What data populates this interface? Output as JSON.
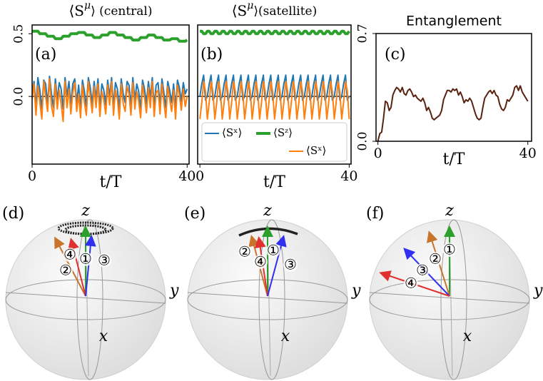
{
  "chart_data": [
    {
      "type": "line",
      "title": [
        "⟨S",
        "μ",
        "⟩ (central)"
      ],
      "panel_label": "(a)",
      "xlabel": "t/T",
      "xlim": [
        0,
        40.5
      ],
      "xticks": [
        0,
        40
      ],
      "ylim": [
        -0.54,
        0.57
      ],
      "yticks": [
        0.5,
        {
          "value": 0,
          "label": "0.0"
        }
      ],
      "hline": 0,
      "x": [
        0,
        0.5,
        1,
        1.5,
        2,
        2.5,
        3,
        3.5,
        4,
        4.5,
        5,
        5.5,
        6,
        6.5,
        7,
        7.5,
        8,
        8.5,
        9,
        9.5,
        10,
        10.5,
        11,
        11.5,
        12,
        12.5,
        13,
        13.5,
        14,
        14.5,
        15,
        15.5,
        16,
        16.5,
        17,
        17.5,
        18,
        18.5,
        19,
        19.5,
        20,
        20.5,
        21,
        21.5,
        22,
        22.5,
        23,
        23.5,
        24,
        24.5,
        25,
        25.5,
        26,
        26.5,
        27,
        27.5,
        28,
        28.5,
        29,
        29.5,
        30,
        30.5,
        31,
        31.5,
        32,
        32.5,
        33,
        33.5,
        34,
        34.5,
        35,
        35.5,
        36,
        36.5,
        37,
        37.5,
        38,
        38.5,
        39,
        39.5,
        40
      ],
      "series": [
        {
          "color": "#1f77b4",
          "width": 2,
          "values": [
            0.02,
            0.12,
            -0.08,
            0.15,
            0.05,
            -0.1,
            0.13,
            0.1,
            -0.06,
            0.16,
            0.02,
            -0.09,
            0.14,
            -0.03,
            0.11,
            0.06,
            -0.1,
            0.15,
            0.0,
            0.12,
            -0.07,
            0.1,
            0.14,
            -0.05,
            0.09,
            -0.1,
            0.13,
            0.04,
            -0.08,
            0.15,
            0.07,
            -0.06,
            0.12,
            -0.02,
            0.14,
            -0.09,
            0.1,
            0.05,
            -0.07,
            0.13,
            0.0,
            0.15,
            -0.08,
            0.11,
            0.06,
            -0.1,
            0.14,
            0.02,
            -0.05,
            0.12,
            0.09,
            -0.08,
            0.15,
            -0.03,
            0.1,
            0.04,
            -0.1,
            0.13,
            0.06,
            -0.06,
            0.12,
            -0.01,
            0.15,
            -0.08,
            0.09,
            0.11,
            -0.07,
            0.14,
            0.03,
            -0.09,
            0.12,
            0.05,
            -0.05,
            0.1,
            -0.1,
            0.13,
            0.07,
            -0.04,
            0.11,
            0.02,
            0.06
          ]
        },
        {
          "color": "#ff7f0e",
          "width": 2,
          "values": [
            -0.02,
            0.1,
            -0.15,
            0.08,
            -0.05,
            -0.18,
            0.12,
            0.0,
            -0.12,
            0.14,
            -0.08,
            -0.16,
            0.1,
            -0.1,
            0.05,
            -0.06,
            -0.2,
            0.12,
            -0.09,
            0.06,
            -0.14,
            0.03,
            0.11,
            -0.12,
            0.02,
            -0.17,
            0.09,
            -0.05,
            -0.15,
            0.12,
            0.0,
            -0.13,
            0.08,
            -0.09,
            0.1,
            -0.16,
            0.04,
            -0.03,
            -0.14,
            0.09,
            -0.07,
            0.12,
            -0.15,
            0.05,
            -0.02,
            -0.18,
            0.1,
            -0.06,
            -0.12,
            0.08,
            0.02,
            -0.15,
            0.11,
            -0.1,
            0.04,
            -0.04,
            -0.17,
            0.09,
            -0.01,
            -0.13,
            0.07,
            -0.09,
            0.12,
            -0.16,
            0.03,
            0.05,
            -0.14,
            0.1,
            -0.05,
            -0.17,
            0.08,
            -0.02,
            -0.12,
            0.05,
            -0.18,
            0.09,
            0.01,
            -0.11,
            0.06,
            -0.08,
            0.0
          ]
        },
        {
          "color": "#2ca02c",
          "width": 4,
          "values": [
            0.52,
            0.52,
            0.52,
            0.52,
            0.5,
            0.5,
            0.5,
            0.5,
            0.48,
            0.48,
            0.48,
            0.48,
            0.46,
            0.46,
            0.46,
            0.46,
            0.48,
            0.48,
            0.48,
            0.48,
            0.5,
            0.5,
            0.5,
            0.5,
            0.51,
            0.51,
            0.51,
            0.51,
            0.49,
            0.49,
            0.49,
            0.49,
            0.47,
            0.47,
            0.47,
            0.47,
            0.49,
            0.49,
            0.49,
            0.49,
            0.51,
            0.51,
            0.51,
            0.51,
            0.49,
            0.49,
            0.49,
            0.49,
            0.47,
            0.47,
            0.47,
            0.47,
            0.45,
            0.45,
            0.45,
            0.45,
            0.47,
            0.47,
            0.47,
            0.47,
            0.49,
            0.49,
            0.49,
            0.49,
            0.47,
            0.47,
            0.47,
            0.47,
            0.45,
            0.45,
            0.45,
            0.45,
            0.46,
            0.46,
            0.46,
            0.46,
            0.44,
            0.44,
            0.44,
            0.44,
            0.45
          ]
        }
      ]
    },
    {
      "type": "line",
      "title": [
        "⟨S",
        "μ",
        "⟩(satellite)"
      ],
      "panel_label": "(b)",
      "xlabel": "t/T",
      "xlim": [
        -0.6,
        40.5
      ],
      "xticks": [
        0,
        40
      ],
      "ylim": [
        -0.54,
        0.57
      ],
      "hline": 0,
      "x": [
        0,
        0.5,
        1,
        1.5,
        2,
        2.5,
        3,
        3.5,
        4,
        4.5,
        5,
        5.5,
        6,
        6.5,
        7,
        7.5,
        8,
        8.5,
        9,
        9.5,
        10,
        10.5,
        11,
        11.5,
        12,
        12.5,
        13,
        13.5,
        14,
        14.5,
        15,
        15.5,
        16,
        16.5,
        17,
        17.5,
        18,
        18.5,
        19,
        19.5,
        20,
        20.5,
        21,
        21.5,
        22,
        22.5,
        23,
        23.5,
        24,
        24.5,
        25,
        25.5,
        26,
        26.5,
        27,
        27.5,
        28,
        28.5,
        29,
        29.5,
        30,
        30.5,
        31,
        31.5,
        32,
        32.5,
        33,
        33.5,
        34,
        34.5,
        35,
        35.5,
        36,
        36.5,
        37,
        37.5,
        38,
        38.5,
        39,
        39.5,
        40
      ],
      "series": [
        {
          "name": "⟨Sˣ⟩",
          "color": "#1f77b4",
          "width": 2,
          "values": [
            0.0,
            0.1,
            0.17,
            -0.03,
            0.0,
            0.1,
            0.17,
            -0.03,
            0.0,
            0.1,
            0.17,
            -0.03,
            0.0,
            0.1,
            0.17,
            -0.03,
            0.0,
            0.1,
            0.17,
            -0.03,
            0.0,
            0.1,
            0.17,
            -0.03,
            0.0,
            0.1,
            0.17,
            -0.03,
            0.0,
            0.1,
            0.17,
            -0.03,
            0.0,
            0.1,
            0.17,
            -0.03,
            0.0,
            0.1,
            0.17,
            -0.03,
            0.0,
            0.1,
            0.17,
            -0.03,
            0.0,
            0.1,
            0.17,
            -0.03,
            0.0,
            0.1,
            0.17,
            -0.03,
            0.0,
            0.1,
            0.17,
            -0.03,
            0.0,
            0.1,
            0.17,
            -0.03,
            0.0,
            0.1,
            0.17,
            -0.03,
            0.0,
            0.1,
            0.17,
            -0.03,
            0.0,
            0.1,
            0.17,
            -0.03,
            0.0,
            0.1,
            0.17,
            -0.03,
            0.0,
            0.1,
            0.17,
            -0.03,
            0.0
          ]
        },
        {
          "name": "⟨Sᶻ⟩",
          "color": "#2ca02c",
          "width": 4,
          "values": [
            0.52,
            0.52,
            0.5,
            0.5,
            0.52,
            0.52,
            0.5,
            0.5,
            0.52,
            0.52,
            0.5,
            0.5,
            0.52,
            0.52,
            0.5,
            0.5,
            0.52,
            0.52,
            0.5,
            0.5,
            0.52,
            0.52,
            0.5,
            0.5,
            0.52,
            0.52,
            0.5,
            0.5,
            0.52,
            0.52,
            0.5,
            0.5,
            0.52,
            0.52,
            0.5,
            0.5,
            0.52,
            0.52,
            0.5,
            0.5,
            0.52,
            0.52,
            0.5,
            0.5,
            0.52,
            0.52,
            0.5,
            0.5,
            0.52,
            0.52,
            0.5,
            0.5,
            0.52,
            0.52,
            0.5,
            0.5,
            0.52,
            0.52,
            0.5,
            0.5,
            0.52,
            0.52,
            0.5,
            0.5,
            0.52,
            0.52,
            0.5,
            0.5,
            0.52,
            0.52,
            0.5,
            0.5,
            0.52,
            0.52,
            0.5,
            0.5,
            0.52,
            0.52,
            0.5,
            0.5,
            0.52
          ]
        },
        {
          "name": "⟨Sˣ⟩",
          "color": "#ff7f0e",
          "width": 2,
          "values": [
            -0.18,
            -0.05,
            0.12,
            0.04,
            -0.18,
            -0.05,
            0.12,
            0.04,
            -0.18,
            -0.05,
            0.12,
            0.04,
            -0.18,
            -0.05,
            0.12,
            0.04,
            -0.18,
            -0.05,
            0.12,
            0.04,
            -0.18,
            -0.05,
            0.12,
            0.04,
            -0.18,
            -0.05,
            0.12,
            0.04,
            -0.18,
            -0.05,
            0.12,
            0.04,
            -0.18,
            -0.05,
            0.12,
            0.04,
            -0.18,
            -0.05,
            0.12,
            0.04,
            -0.18,
            -0.05,
            0.12,
            0.04,
            -0.18,
            -0.05,
            0.12,
            0.04,
            -0.18,
            -0.05,
            0.12,
            0.04,
            -0.18,
            -0.05,
            0.12,
            0.04,
            -0.18,
            -0.05,
            0.12,
            0.04,
            -0.18,
            -0.05,
            0.12,
            0.04,
            -0.18,
            -0.05,
            0.12,
            0.04,
            -0.18,
            -0.05,
            0.12,
            0.04,
            -0.18,
            -0.05,
            0.12,
            0.04,
            -0.18,
            -0.05,
            0.12,
            0.04,
            -0.18
          ]
        }
      ],
      "legend": "lower center"
    },
    {
      "type": "line",
      "title": [
        "Entanglement"
      ],
      "panel_label": "(c)",
      "xlabel": "t/T",
      "xlim": [
        -0.5,
        41
      ],
      "xticks": [
        0,
        40
      ],
      "ylim": [
        0,
        0.7
      ],
      "yticks": [
        {
          "value": 0,
          "label": "0.0"
        },
        0.7
      ],
      "x": [
        0,
        0.5,
        1,
        1.5,
        2,
        2.5,
        3,
        3.5,
        4,
        4.5,
        5,
        5.5,
        6,
        6.5,
        7,
        7.5,
        8,
        8.5,
        9,
        9.5,
        10,
        10.5,
        11,
        11.5,
        12,
        12.5,
        13,
        13.5,
        14,
        14.5,
        15,
        15.5,
        16,
        16.5,
        17,
        17.5,
        18,
        18.5,
        19,
        19.5,
        20,
        20.5,
        21,
        21.5,
        22,
        22.5,
        23,
        23.5,
        24,
        24.5,
        25,
        25.5,
        26,
        26.5,
        27,
        27.5,
        28,
        28.5,
        29,
        29.5,
        30,
        30.5,
        31,
        31.5,
        32,
        32.5,
        33,
        33.5,
        34,
        34.5,
        35,
        35.5,
        36,
        36.5,
        37,
        37.5,
        38,
        38.5,
        39,
        39.5,
        40
      ],
      "series": [
        {
          "color": "#5a2210",
          "width": 2,
          "values": [
            0.0,
            0.05,
            0.06,
            0.15,
            0.26,
            0.25,
            0.2,
            0.22,
            0.3,
            0.33,
            0.35,
            0.34,
            0.32,
            0.35,
            0.31,
            0.3,
            0.33,
            0.34,
            0.32,
            0.29,
            0.3,
            0.28,
            0.27,
            0.26,
            0.28,
            0.25,
            0.2,
            0.22,
            0.19,
            0.15,
            0.14,
            0.15,
            0.16,
            0.17,
            0.2,
            0.27,
            0.3,
            0.33,
            0.33,
            0.32,
            0.34,
            0.33,
            0.34,
            0.3,
            0.32,
            0.29,
            0.25,
            0.27,
            0.26,
            0.28,
            0.26,
            0.22,
            0.18,
            0.15,
            0.14,
            0.15,
            0.22,
            0.28,
            0.3,
            0.32,
            0.33,
            0.31,
            0.33,
            0.3,
            0.29,
            0.24,
            0.21,
            0.2,
            0.22,
            0.27,
            0.26,
            0.28,
            0.3,
            0.35,
            0.36,
            0.33,
            0.36,
            0.32,
            0.3,
            0.28,
            0.26
          ]
        }
      ]
    }
  ],
  "bloch_panels": [
    {
      "label": "(d)",
      "z": "z",
      "y": "y",
      "x": "x",
      "markers": [
        "④",
        "①",
        "③",
        "②"
      ]
    },
    {
      "label": "(e)",
      "z": "z",
      "y": "y",
      "x": "x",
      "markers": [
        "②",
        "①",
        "④",
        "③"
      ]
    },
    {
      "label": "(f)",
      "z": "z",
      "y": "y",
      "x": "x",
      "markers": [
        "①",
        "②",
        "③",
        "④"
      ]
    }
  ]
}
